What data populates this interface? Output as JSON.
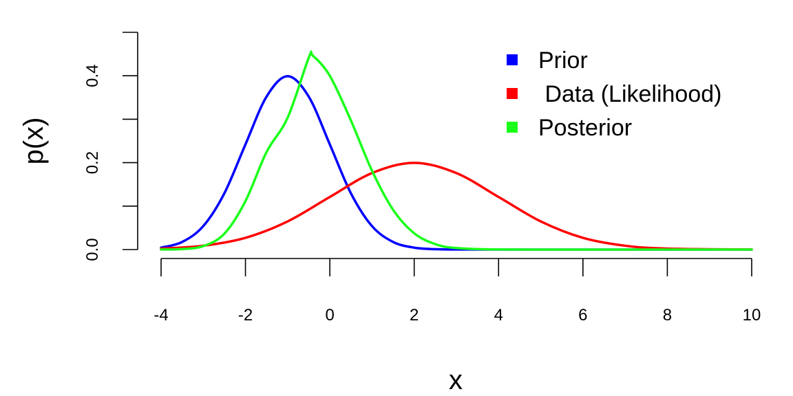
{
  "chart_data": {
    "type": "line",
    "title": "",
    "xlabel": "x",
    "ylabel": "p(x)",
    "xlim": [
      -4,
      10
    ],
    "ylim": [
      0,
      0.5
    ],
    "x_ticks": [
      -4,
      -2,
      0,
      2,
      4,
      6,
      8,
      10
    ],
    "x_tick_labels": [
      "-4",
      "-2",
      "0",
      "2",
      "4",
      "6",
      "8",
      "10"
    ],
    "y_ticks": [
      0,
      0.1,
      0.2,
      0.3,
      0.4,
      0.5
    ],
    "y_tick_labels": [
      "0.0",
      "",
      "0.2",
      "",
      "0.4",
      ""
    ],
    "grid": false,
    "legend_position": "top-right",
    "series": [
      {
        "name": "Prior",
        "color": "#0000ff",
        "x": [
          -4,
          -3.5,
          -3,
          -2.5,
          -2,
          -1.5,
          -1,
          -0.5,
          0,
          0.5,
          1,
          1.5,
          2,
          2.5,
          3,
          4,
          6,
          10
        ],
        "values": [
          0.0044,
          0.0175,
          0.054,
          0.1295,
          0.242,
          0.352,
          0.399,
          0.352,
          0.242,
          0.1295,
          0.054,
          0.0175,
          0.0044,
          0.0009,
          0.0001,
          0,
          0,
          0
        ]
      },
      {
        "name": " Data (Likelihood)",
        "color": "#ff0000",
        "x": [
          -4,
          -3,
          -2,
          -1,
          0,
          1,
          2,
          3,
          4,
          5,
          6,
          7,
          8,
          10
        ],
        "values": [
          0.0022,
          0.0088,
          0.027,
          0.0648,
          0.121,
          0.176,
          0.1995,
          0.176,
          0.121,
          0.0648,
          0.027,
          0.0088,
          0.0022,
          0.0001
        ]
      },
      {
        "name": "Posterior",
        "color": "#1aff1a",
        "x": [
          -4,
          -3.5,
          -3,
          -2.5,
          -2,
          -1.5,
          -1,
          -0.5,
          -0.4,
          0,
          0.5,
          1,
          1.5,
          2,
          2.5,
          3,
          4,
          6,
          10
        ],
        "values": [
          0.0001,
          0.0011,
          0.0079,
          0.0365,
          0.1115,
          0.2245,
          0.3035,
          0.4415,
          0.446,
          0.4,
          0.297,
          0.1815,
          0.0915,
          0.0375,
          0.0125,
          0.0035,
          0.0001,
          0,
          0
        ]
      }
    ]
  }
}
